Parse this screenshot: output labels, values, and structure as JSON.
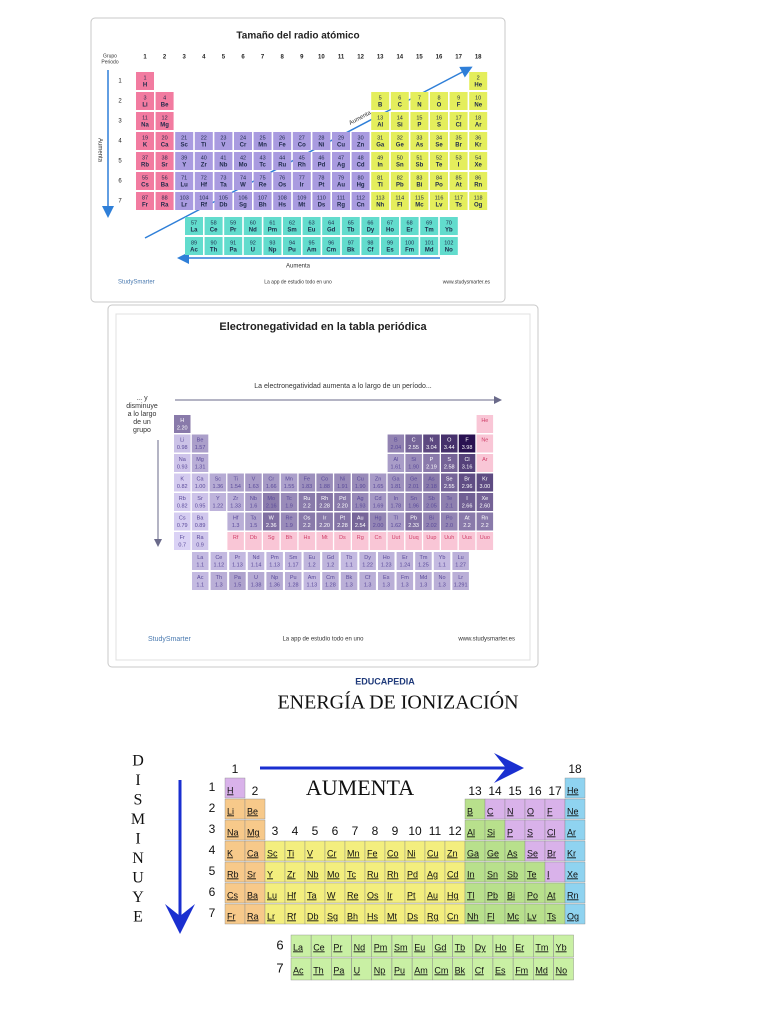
{
  "symbols": [
    "H",
    "He",
    "Li",
    "Be",
    "B",
    "C",
    "N",
    "O",
    "F",
    "Ne",
    "Na",
    "Mg",
    "Al",
    "Si",
    "P",
    "S",
    "Cl",
    "Ar",
    "K",
    "Ca",
    "Sc",
    "Ti",
    "V",
    "Cr",
    "Mn",
    "Fe",
    "Co",
    "Ni",
    "Cu",
    "Zn",
    "Ga",
    "Ge",
    "As",
    "Se",
    "Br",
    "Kr",
    "Rb",
    "Sr",
    "Y",
    "Zr",
    "Nb",
    "Mo",
    "Tc",
    "Ru",
    "Rh",
    "Pd",
    "Ag",
    "Cd",
    "In",
    "Sn",
    "Sb",
    "Te",
    "I",
    "Xe",
    "Cs",
    "Ba",
    "La",
    "Ce",
    "Pr",
    "Nd",
    "Pm",
    "Sm",
    "Eu",
    "Gd",
    "Tb",
    "Dy",
    "Ho",
    "Er",
    "Tm",
    "Yb",
    "Lu",
    "Hf",
    "Ta",
    "W",
    "Re",
    "Os",
    "Ir",
    "Pt",
    "Au",
    "Hg",
    "Tl",
    "Pb",
    "Bi",
    "Po",
    "At",
    "Rn",
    "Fr",
    "Ra",
    "Ac",
    "Th",
    "Pa",
    "U",
    "Np",
    "Pu",
    "Am",
    "Cm",
    "Bk",
    "Cf",
    "Es",
    "Fm",
    "Md",
    "No",
    "Lr",
    "Rf",
    "Db",
    "Sg",
    "Bh",
    "Hs",
    "Mt",
    "Ds",
    "Rg",
    "Cn",
    "Nh",
    "Fl",
    "Mc",
    "Lv",
    "Ts",
    "Og"
  ],
  "numbers": [
    1,
    2,
    3,
    4,
    5,
    6,
    7,
    8,
    9,
    10,
    11,
    12,
    13,
    14,
    15,
    16,
    17,
    18,
    19,
    20,
    21,
    22,
    23,
    24,
    25,
    26,
    27,
    28,
    29,
    30,
    31,
    32,
    33,
    34,
    35,
    36,
    37,
    38,
    39,
    40,
    41,
    42,
    43,
    44,
    45,
    46,
    47,
    48,
    49,
    50,
    51,
    52,
    53,
    54,
    55,
    56,
    57,
    58,
    59,
    60,
    61,
    62,
    63,
    64,
    65,
    66,
    67,
    68,
    69,
    70,
    71,
    72,
    73,
    74,
    75,
    76,
    77,
    78,
    79,
    80,
    81,
    82,
    83,
    84,
    85,
    86,
    87,
    88,
    89,
    90,
    91,
    92,
    93,
    94,
    95,
    96,
    97,
    98,
    99,
    100,
    101,
    102,
    103,
    104,
    105,
    106,
    107,
    108,
    109,
    110,
    111,
    112,
    113,
    114,
    115,
    116,
    117,
    118
  ],
  "electronegativity": [
    "2.20",
    null,
    "0.98",
    "1.57",
    "2.04",
    "2.55",
    "3.04",
    "3.44",
    "3.98",
    null,
    "0.93",
    "1.31",
    "1.61",
    "1.90",
    "2.19",
    "2.58",
    "3.16",
    null,
    "0.82",
    "1.00",
    "1.36",
    "1.54",
    "1.63",
    "1.66",
    "1.55",
    "1.83",
    "1.88",
    "1.91",
    "1.90",
    "1.65",
    "1.81",
    "2.01",
    "2.18",
    "2.55",
    "2.96",
    "3.00",
    "0.82",
    "0.95",
    "1.22",
    "1.33",
    "1.6",
    "2.16",
    "1.9",
    "2.2",
    "2.28",
    "2.20",
    "1.93",
    "1.69",
    "1.78",
    "1.96",
    "2.05",
    "2.1",
    "2.66",
    "2.60",
    "0.79",
    "0.89",
    "1.1",
    "1.12",
    "1.13",
    "1.14",
    "1.13",
    "1.17",
    "1.2",
    "1.2",
    "1.1",
    "1.22",
    "1.23",
    "1.24",
    "1.25",
    "1.1",
    "1.27",
    "1.3",
    "1.5",
    "2.36",
    "1.9",
    "2.2",
    "2.20",
    "2.28",
    "2.54",
    "2.00",
    "1.62",
    "2.33",
    "2.02",
    "2.0",
    "2.2",
    "2.2",
    "0.7",
    "0.9",
    "1.1",
    "1.3",
    "1.5",
    "1.38",
    "1.36",
    "1.28",
    "1.13",
    "1.28",
    "1.3",
    "1.3",
    "1.3",
    "1.3",
    "1.3",
    "1.3",
    "1.291",
    null,
    null,
    null,
    null,
    null,
    null,
    null,
    null,
    null,
    null,
    null,
    null,
    null,
    null,
    null
  ],
  "footer": {
    "brand": "StudySmarter",
    "tagline": "La app de estudio todo en uno",
    "url": "www.studysmarter.es"
  },
  "radius": {
    "title": "Tamaño del radio atómico",
    "group_label": "Grupo",
    "period_label": "Periodo",
    "groups": [
      1,
      2,
      3,
      4,
      5,
      6,
      7,
      8,
      9,
      10,
      11,
      12,
      13,
      14,
      15,
      16,
      17,
      18
    ],
    "periods": [
      1,
      2,
      3,
      4,
      5,
      6,
      7
    ],
    "increase_down": "Aumenta",
    "increase_diagonal": "Aumenta",
    "increase_left": "Aumenta"
  },
  "electronegativity_panel": {
    "title": "Electronegatividad en la tabla periódica",
    "across": "La electronegatividad aumenta a lo largo de un período...",
    "down": [
      "... y",
      "disminuye",
      "a lo largo",
      "de un",
      "grupo"
    ],
    "old_symbols": [
      "Uut",
      "Uuq",
      "Uup",
      "Uuh",
      "Uus",
      "Uuo"
    ]
  },
  "ionization": {
    "brand": "EDUCAPEDIA",
    "title": "ENERGÍA DE IONIZACIÓN",
    "across": "AUMENTA",
    "down": [
      "D",
      "I",
      "S",
      "M",
      "I",
      "N",
      "U",
      "Y",
      "E"
    ],
    "groups": [
      1,
      2,
      3,
      4,
      5,
      6,
      7,
      8,
      9,
      10,
      11,
      12,
      13,
      14,
      15,
      16,
      17,
      18
    ],
    "periods": [
      1,
      2,
      3,
      4,
      5,
      6,
      7
    ],
    "f_periods": [
      6,
      7
    ]
  }
}
